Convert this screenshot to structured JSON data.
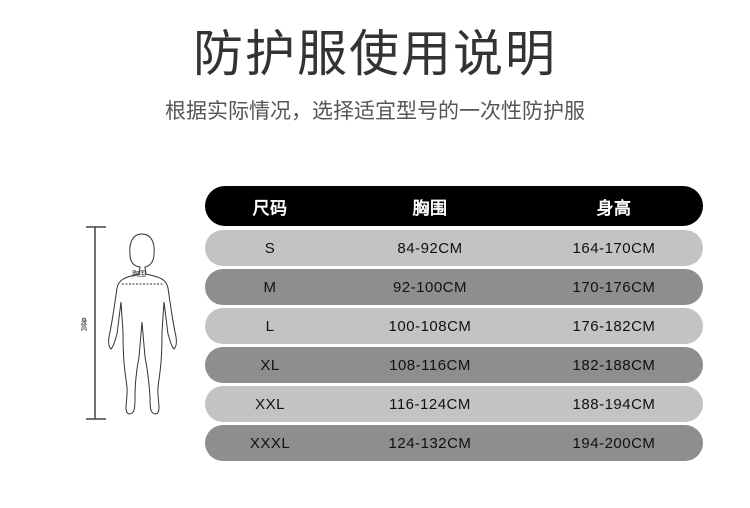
{
  "title": "防护服使用说明",
  "subtitle": "根据实际情况，选择适宜型号的一次性防护服",
  "figure": {
    "chest_label": "胸围",
    "height_label": "身高"
  },
  "table": {
    "headers": [
      "尺码",
      "胸围",
      "身高"
    ],
    "rows": [
      [
        "S",
        "84-92CM",
        "164-170CM"
      ],
      [
        "M",
        "92-100CM",
        "170-176CM"
      ],
      [
        "L",
        "100-108CM",
        "176-182CM"
      ],
      [
        "XL",
        "108-116CM",
        "182-188CM"
      ],
      [
        "XXL",
        "116-124CM",
        "188-194CM"
      ],
      [
        "XXXL",
        "124-132CM",
        "194-200CM"
      ]
    ]
  },
  "colors": {
    "header": "#000000",
    "row_light": "#c3c3c3",
    "row_dark": "#8e8e8e"
  }
}
